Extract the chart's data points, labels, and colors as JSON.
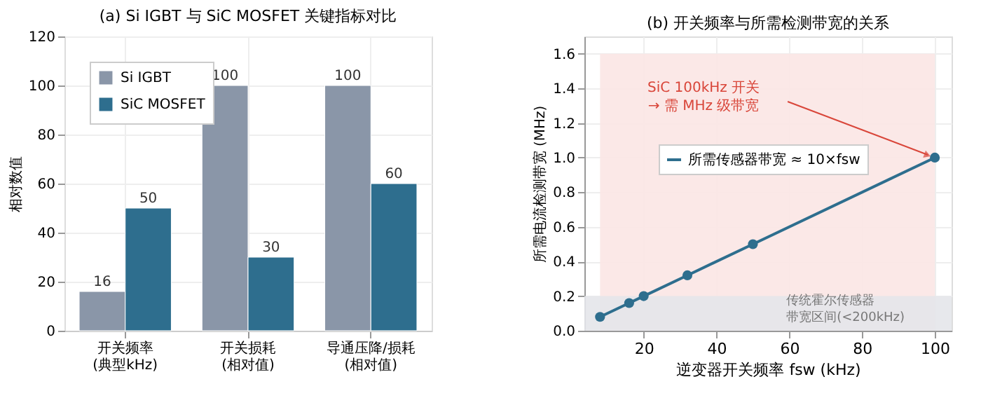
{
  "chart_data": [
    {
      "type": "bar",
      "title": "(a) Si IGBT 与 SiC MOSFET 关键指标对比",
      "ylabel": "相对数值",
      "categories": [
        "开关频率\n(典型kHz)",
        "开关损耗\n(相对值)",
        "导通压降/损耗\n(相对值)"
      ],
      "series": [
        {
          "name": "Si IGBT",
          "color": "#8a96a8",
          "values": [
            16,
            100,
            100
          ]
        },
        {
          "name": "SiC MOSFET",
          "color": "#2e6e8e",
          "values": [
            50,
            30,
            60
          ]
        }
      ],
      "ylim": [
        0,
        120
      ],
      "yticks": [
        0,
        20,
        40,
        60,
        80,
        100,
        120
      ],
      "grid": true,
      "legend": "top left",
      "data_labels": true
    },
    {
      "type": "line",
      "title": "(b) 开关频率与所需检测带宽的关系",
      "xlabel": "逆变器开关频率 fsw (kHz)",
      "ylabel": "所需电流检测带宽 (MHz)",
      "series": [
        {
          "name": "所需传感器带宽 ≈ 10×fsw",
          "color": "#2e6e8e",
          "x": [
            8,
            16,
            20,
            32,
            50,
            100
          ],
          "values": [
            0.08,
            0.16,
            0.2,
            0.32,
            0.5,
            1.0
          ]
        }
      ],
      "xlim": [
        3.7,
        104.6
      ],
      "xticks": [
        20,
        40,
        60,
        80,
        100
      ],
      "ylim": [
        0,
        1.7
      ],
      "yticks": [
        {
          "value": 0,
          "label": "0.0"
        },
        0.2,
        0.4,
        0.6,
        0.8,
        {
          "value": 1,
          "label": "1.0"
        },
        1.2,
        1.4,
        1.6
      ],
      "bands": [
        {
          "axis": "x",
          "from": 8,
          "to": 100,
          "color": "#fbe6e4"
        },
        {
          "axis": "y",
          "from": 0,
          "to": 0.2,
          "label": "传统霍尔传感器带宽区间(<200kHz)",
          "color": "#e4e6ea"
        }
      ],
      "annotations": [
        "SiC 100kHz 开关\n→ 需 MHz 级带宽"
      ],
      "grid": true,
      "legend": "center",
      "marker": "circle",
      "line_style": "solid"
    }
  ]
}
